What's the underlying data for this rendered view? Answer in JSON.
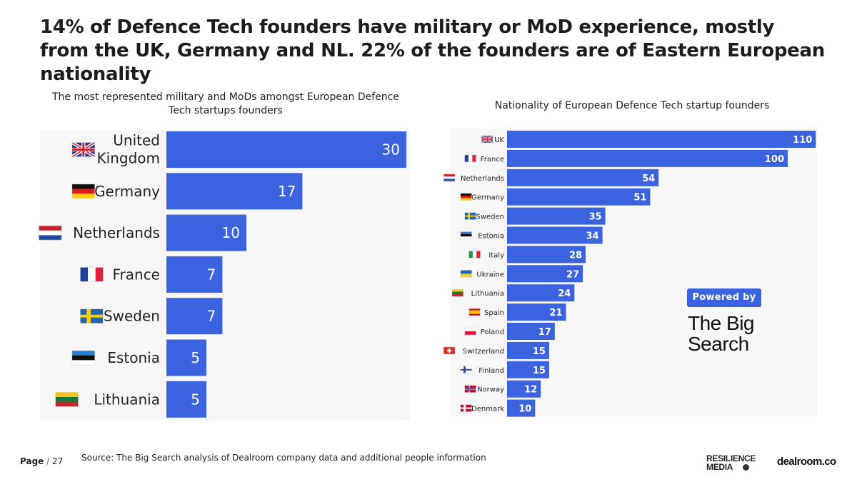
{
  "header": {
    "title": "14% of Defence Tech founders have military or MoD experience, mostly from the UK, Germany and NL. 22% of the founders are of Eastern European nationality"
  },
  "chart_data": [
    {
      "type": "bar",
      "orientation": "horizontal",
      "title": "The most represented military and MoDs amongst European Defence Tech startups founders",
      "categories": [
        "United Kingdom",
        "Germany",
        "Netherlands",
        "France",
        "Sweden",
        "Estonia",
        "Lithuania"
      ],
      "values": [
        30,
        17,
        10,
        7,
        7,
        5,
        5
      ],
      "bar_color": "#3b63df",
      "grid": false
    },
    {
      "type": "bar",
      "orientation": "horizontal",
      "title": "Nationality of European Defence Tech startup founders",
      "categories": [
        "UK",
        "France",
        "Netherlands",
        "Germany",
        "Sweden",
        "Estonia",
        "Italy",
        "Ukraine",
        "Lithuania",
        "Spain",
        "Poland",
        "Switzerland",
        "Finland",
        "Norway",
        "Denmark"
      ],
      "values": [
        110,
        100,
        54,
        51,
        35,
        34,
        28,
        27,
        24,
        21,
        17,
        15,
        15,
        12,
        10
      ],
      "bar_color": "#3b63df",
      "grid": false
    }
  ],
  "flags": {
    "United Kingdom": "uk-flag-icon",
    "Germany": "germany-flag-icon",
    "Netherlands": "netherlands-flag-icon",
    "France": "france-flag-icon",
    "Sweden": "sweden-flag-icon",
    "Estonia": "estonia-flag-icon",
    "Lithuania": "lithuania-flag-icon"
  },
  "branding": {
    "powered_by": "Powered by",
    "big_search": "The Big Search",
    "resilience_line1": "RESILIENCE",
    "resilience_line2": "MEDIA",
    "dealroom": "dealroom.co"
  },
  "footer": {
    "page_label": "Page",
    "page_number": "27",
    "source": "Source:  The Big Search analysis of Dealroom company data and additional people information"
  },
  "colors": {
    "bar": "#3b63df",
    "panel_bg": "#f7f7f8"
  }
}
